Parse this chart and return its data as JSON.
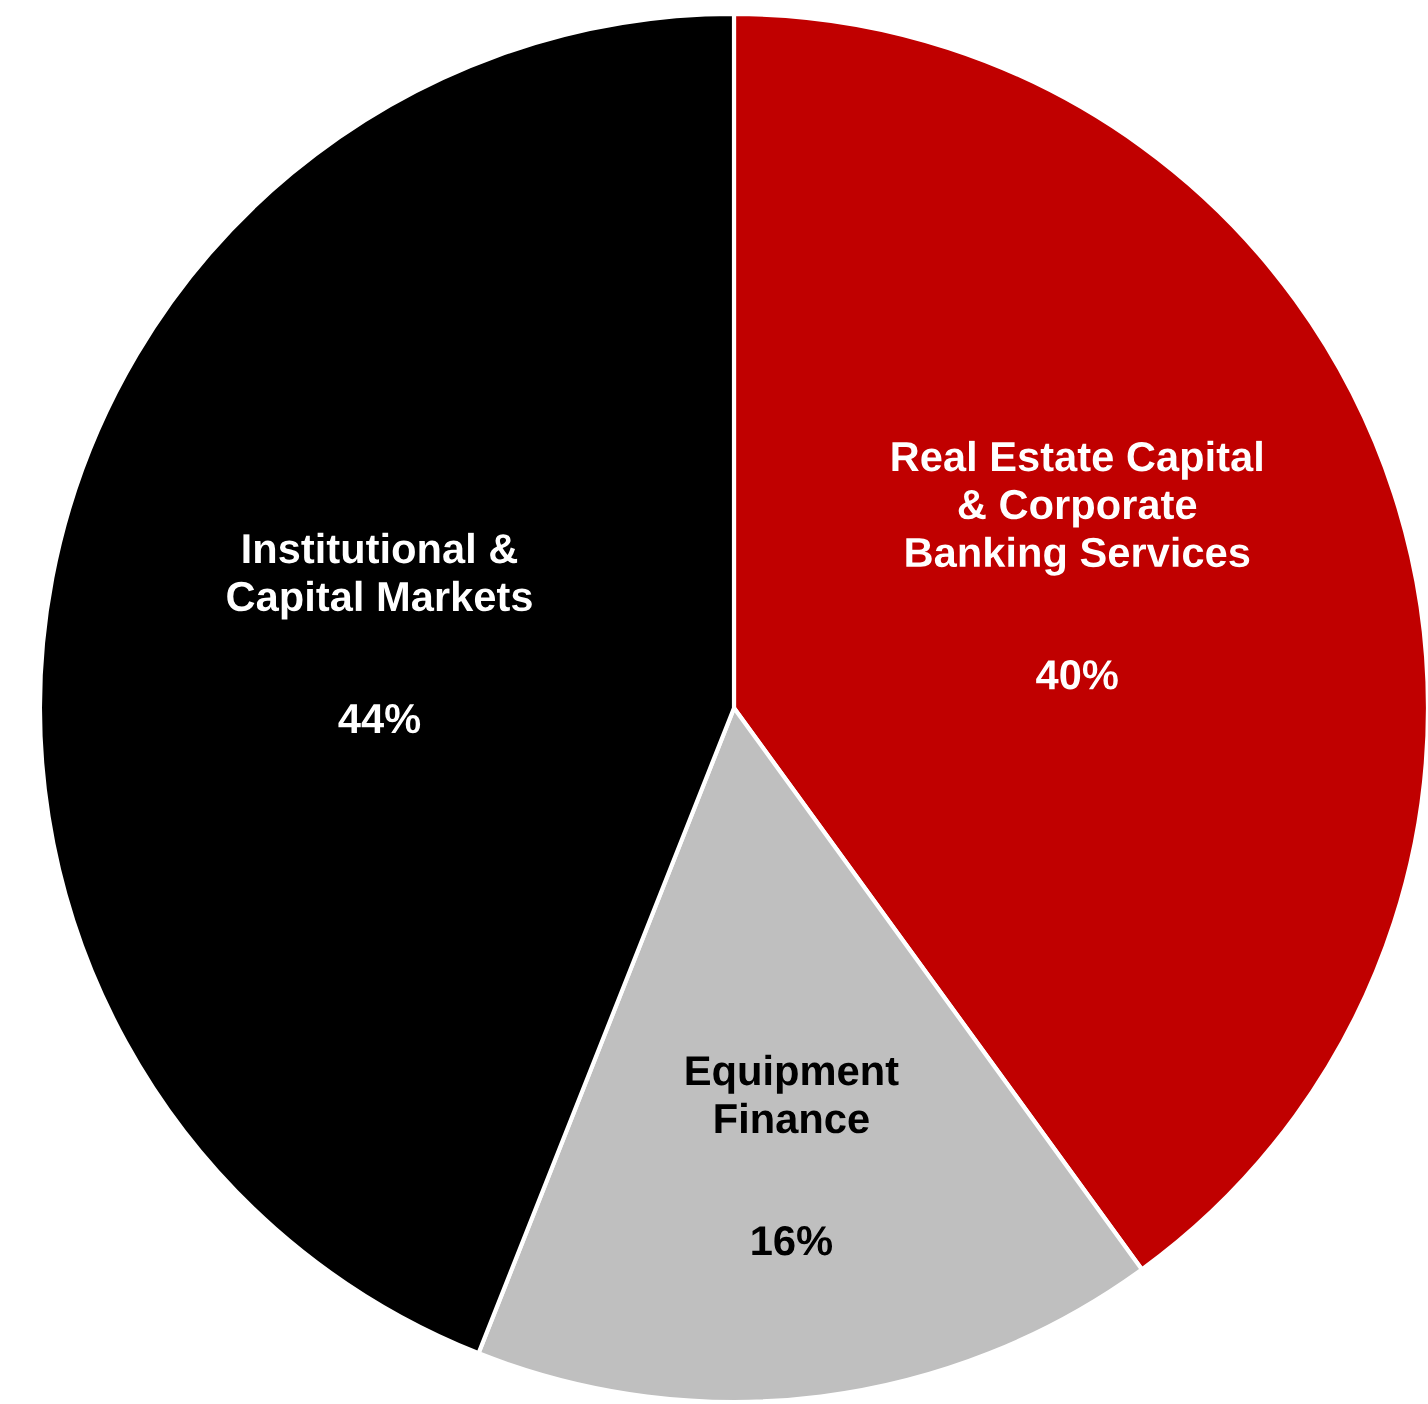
{
  "chart_data": {
    "type": "pie",
    "categories": [
      "Real Estate Capital\n& Corporate\nBanking Services",
      "Equipment\nFinance",
      "Institutional &\nCapital Markets"
    ],
    "values": [
      40,
      16,
      44
    ],
    "value_labels": [
      "40%",
      "16%",
      "44%"
    ],
    "colors": [
      "#c00000",
      "#bfbfbf",
      "#000000"
    ]
  }
}
